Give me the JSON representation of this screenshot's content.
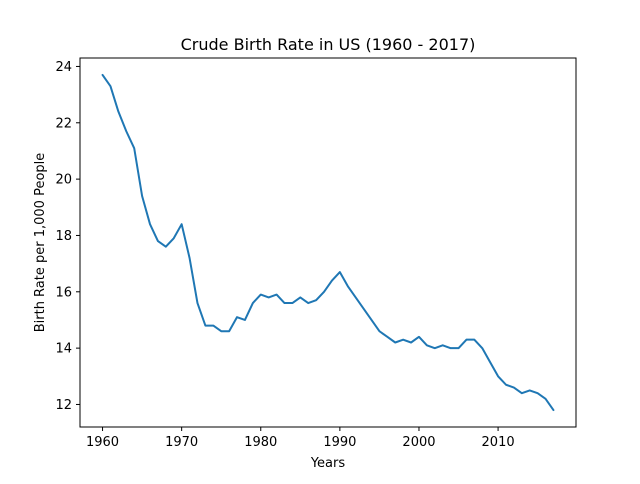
{
  "chart_data": {
    "type": "line",
    "title": "Crude Birth Rate in US (1960 - 2017)",
    "xlabel": "Years",
    "ylabel": "Birth Rate per 1,000 People",
    "xlim": [
      1957.15,
      2019.85
    ],
    "ylim": [
      11.2,
      24.3
    ],
    "xticks": [
      1960,
      1970,
      1980,
      1990,
      2000,
      2010
    ],
    "yticks": [
      12,
      14,
      16,
      18,
      20,
      22,
      24
    ],
    "grid": false,
    "legend": "none",
    "series": [
      {
        "color": "#1f77b4",
        "x": [
          1960,
          1961,
          1962,
          1963,
          1964,
          1965,
          1966,
          1967,
          1968,
          1969,
          1970,
          1971,
          1972,
          1973,
          1974,
          1975,
          1976,
          1977,
          1978,
          1979,
          1980,
          1981,
          1982,
          1983,
          1984,
          1985,
          1986,
          1987,
          1988,
          1989,
          1990,
          1991,
          1992,
          1993,
          1994,
          1995,
          1996,
          1997,
          1998,
          1999,
          2000,
          2001,
          2002,
          2003,
          2004,
          2005,
          2006,
          2007,
          2008,
          2009,
          2010,
          2011,
          2012,
          2013,
          2014,
          2015,
          2016,
          2017
        ],
        "values": [
          23.7,
          23.3,
          22.4,
          21.7,
          21.1,
          19.4,
          18.4,
          17.8,
          17.6,
          17.9,
          18.4,
          17.2,
          15.6,
          14.8,
          14.8,
          14.6,
          14.6,
          15.1,
          15.0,
          15.6,
          15.9,
          15.8,
          15.9,
          15.6,
          15.6,
          15.8,
          15.6,
          15.7,
          16.0,
          16.4,
          16.7,
          16.2,
          15.8,
          15.4,
          15.0,
          14.6,
          14.4,
          14.2,
          14.3,
          14.2,
          14.4,
          14.1,
          14.0,
          14.1,
          14.0,
          14.0,
          14.3,
          14.3,
          14.0,
          13.5,
          13.0,
          12.7,
          12.6,
          12.4,
          12.5,
          12.4,
          12.2,
          11.8
        ]
      }
    ]
  }
}
